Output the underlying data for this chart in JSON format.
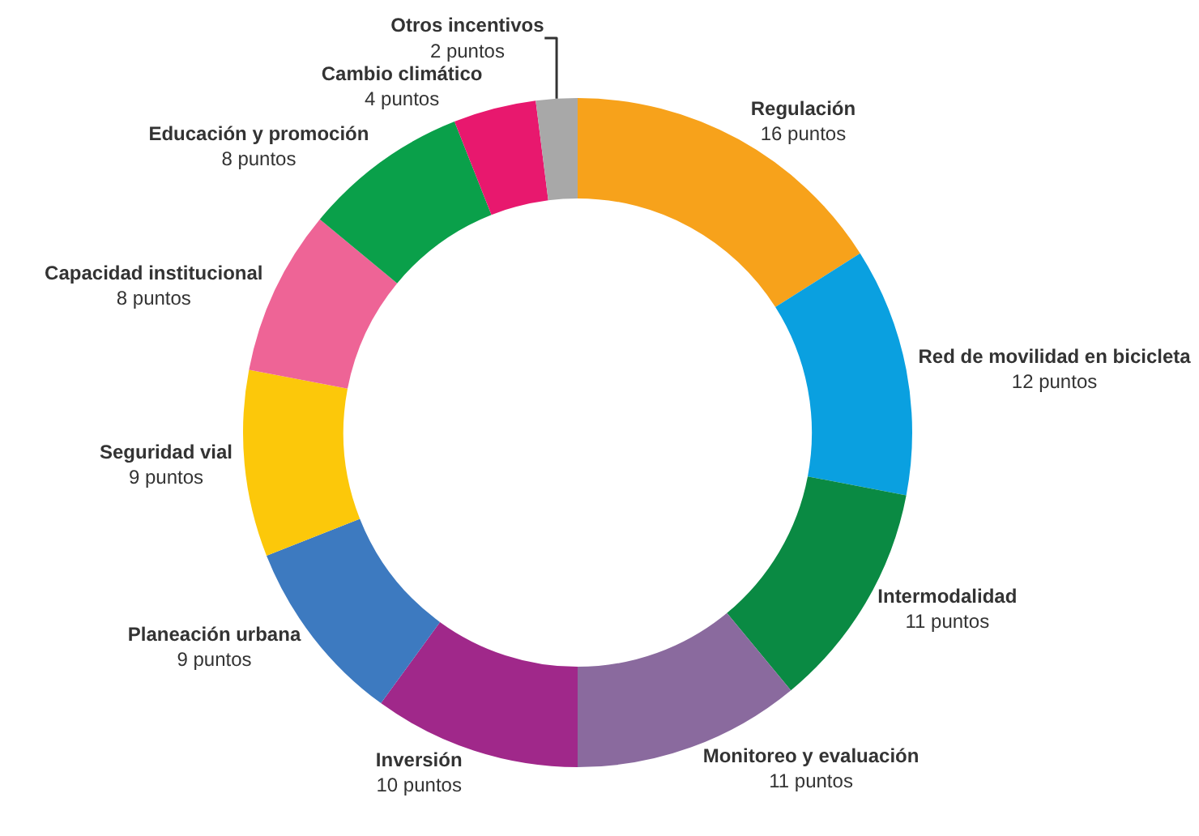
{
  "chart_data": {
    "type": "donut",
    "categories": [
      "Regulación",
      "Red de movilidad en bicicleta",
      "Intermodalidad",
      "Monitoreo y evaluación",
      "Inversión",
      "Planeación urbana",
      "Seguridad vial",
      "Capacidad institucional",
      "Educación y promoción",
      "Cambio climático",
      "Otros incentivos"
    ],
    "values": [
      16,
      12,
      11,
      11,
      10,
      9,
      9,
      8,
      8,
      4,
      2
    ],
    "value_labels": [
      "16 puntos",
      "12 puntos",
      "11 puntos",
      "11 puntos",
      "10 puntos",
      "9 puntos",
      "9 puntos",
      "8 puntos",
      "8 puntos",
      "4 puntos",
      "2 puntos"
    ],
    "colors": [
      "#f7a21b",
      "#0aa0e0",
      "#0a8a43",
      "#8a6a9e",
      "#a0288a",
      "#3d7ac0",
      "#fcc80a",
      "#ee6496",
      "#0aa04a",
      "#e8186e",
      "#a8a8a8"
    ]
  }
}
